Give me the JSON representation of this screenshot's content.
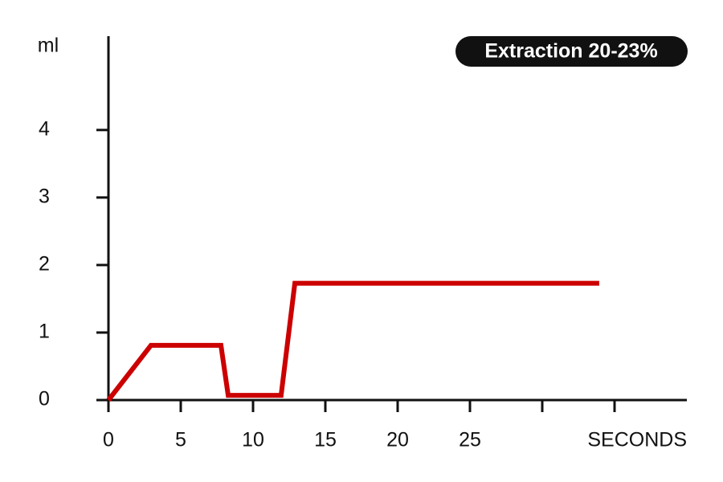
{
  "chart_data": {
    "type": "line",
    "y_label": "ml",
    "x_label": "SECONDS",
    "annotation": "Extraction 20-23%",
    "x": [
      0,
      2.94,
      7.78,
      8.28,
      11.94,
      12.89,
      33.94
    ],
    "series": [
      {
        "color": "#cc0000",
        "values": [
          0,
          0.81,
          0.81,
          0.07,
          0.07,
          1.73,
          1.73
        ]
      }
    ],
    "xlim": [
      0,
      40
    ],
    "ylim": [
      0,
      5.39
    ],
    "xticks": [
      0,
      5,
      10,
      15,
      20,
      25
    ],
    "xticks_unlabeled": [
      30,
      35
    ],
    "yticks": [
      0,
      1,
      2,
      3,
      4
    ]
  }
}
